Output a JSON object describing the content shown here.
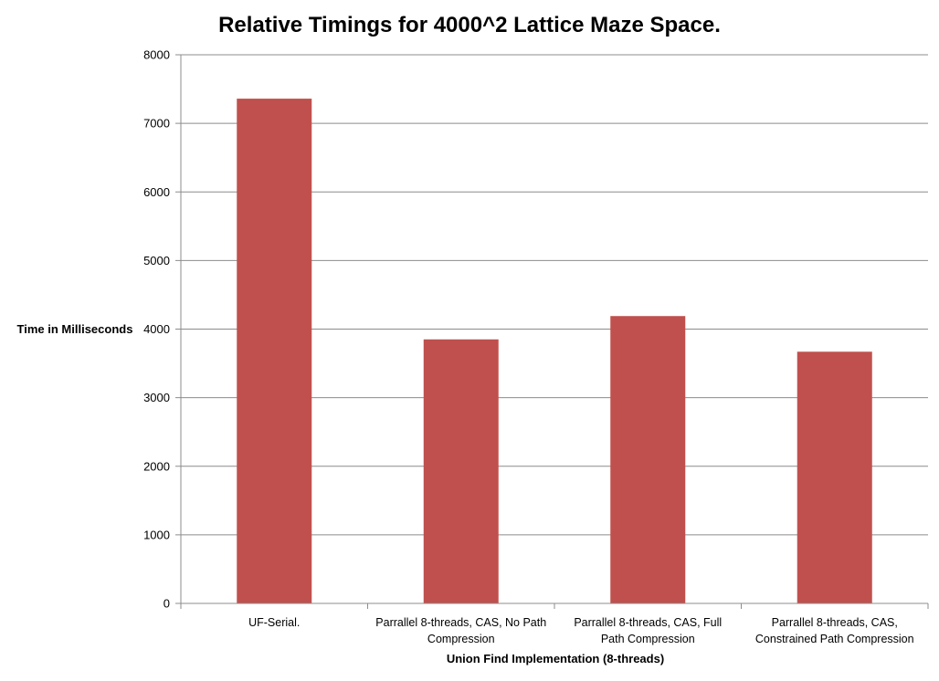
{
  "chart_data": {
    "type": "bar",
    "title": "Relative Timings for 4000^2 Lattice Maze Space.",
    "xlabel": "Union Find Implementation (8-threads)",
    "ylabel": "Time in Milliseconds",
    "ylim": [
      0,
      8000
    ],
    "yticks": [
      "0",
      "1000",
      "2000",
      "3000",
      "4000",
      "5000",
      "6000",
      "7000",
      "8000"
    ],
    "categories": [
      [
        "UF-Serial."
      ],
      [
        "Parrallel 8-threads, CAS, No Path",
        "Compression"
      ],
      [
        "Parrallel 8-threads, CAS, Full",
        "Path Compression"
      ],
      [
        "Parrallel 8-threads, CAS,",
        "Constrained Path Compression"
      ]
    ],
    "values": [
      7360,
      3850,
      4190,
      3670
    ],
    "bar_color": "#c0504d",
    "grid": true,
    "legend": false
  }
}
